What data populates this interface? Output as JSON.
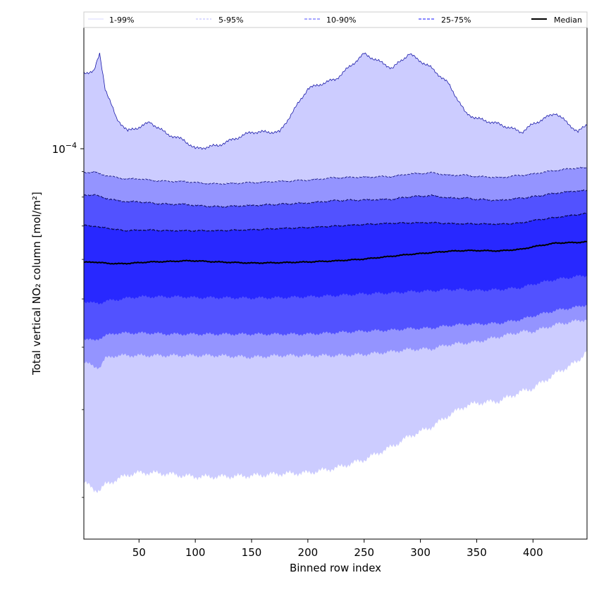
{
  "chart_data": {
    "type": "area",
    "title": "",
    "xlabel": "Binned row index",
    "ylabel": "Total vertical NO₂ column [mol/m²]",
    "xlim": [
      1,
      448
    ],
    "ylim": [
      1.65e-05,
      0.000175
    ],
    "yscale": "log",
    "x_ticks": [
      50,
      100,
      150,
      200,
      250,
      300,
      350,
      400
    ],
    "y_tick_labels": [
      {
        "value": 0.0001,
        "base": "10",
        "exponent": "−4"
      }
    ],
    "legend": {
      "placement": "top",
      "entries": [
        {
          "label": "1-99%",
          "color": "#ccccff",
          "style": "solid-thin"
        },
        {
          "label": "5-95%",
          "color": "#a0a0ff",
          "style": "dashed-thin"
        },
        {
          "label": "10-90%",
          "color": "#7070ff",
          "style": "dashed"
        },
        {
          "label": "25-75%",
          "color": "#4040ff",
          "style": "dashed"
        },
        {
          "label": "Median",
          "color": "#000000",
          "style": "solid-thick"
        }
      ]
    },
    "x": [
      1,
      10,
      15,
      20,
      30,
      40,
      50,
      60,
      75,
      90,
      100,
      120,
      150,
      175,
      200,
      225,
      250,
      275,
      290,
      310,
      325,
      340,
      350,
      370,
      390,
      400,
      420,
      440,
      448
    ],
    "series": [
      {
        "name": "1-99%",
        "color": "#ccccff",
        "lower": [
          2.15e-05,
          2.07e-05,
          2.07e-05,
          2.12e-05,
          2.17e-05,
          2.22e-05,
          2.24e-05,
          2.24e-05,
          2.23e-05,
          2.21e-05,
          2.2e-05,
          2.2e-05,
          2.21e-05,
          2.23e-05,
          2.24e-05,
          2.29e-05,
          2.38e-05,
          2.53e-05,
          2.65e-05,
          2.77e-05,
          2.92e-05,
          3.05e-05,
          3.09e-05,
          3.12e-05,
          3.26e-05,
          3.31e-05,
          3.54e-05,
          3.75e-05,
          3.95e-05
        ],
        "upper": [
          0.000142,
          0.000143,
          0.000155,
          0.000132,
          0.000115,
          0.0001085,
          0.0001105,
          0.000113,
          0.000107,
          0.000104,
          0.0001,
          0.0001015,
          0.000108,
          0.000108,
          0.000132,
          0.000138,
          0.000155,
          0.000145,
          0.000155,
          0.000145,
          0.000135,
          0.000118,
          0.000115,
          0.000112,
          0.000108,
          0.000112,
          0.000118,
          0.000108,
          0.000112
        ]
      },
      {
        "name": "5-95%",
        "color": "#9494ff",
        "lower": [
          3.75e-05,
          3.65e-05,
          3.65e-05,
          3.8e-05,
          3.85e-05,
          3.85e-05,
          3.85e-05,
          3.85e-05,
          3.85e-05,
          3.85e-05,
          3.85e-05,
          3.85e-05,
          3.82e-05,
          3.85e-05,
          3.85e-05,
          3.85e-05,
          3.87e-05,
          3.92e-05,
          3.96e-05,
          3.97e-05,
          4.05e-05,
          4.08e-05,
          4.1e-05,
          4.2e-05,
          4.3e-05,
          4.3e-05,
          4.44e-05,
          4.52e-05,
          4.55e-05
        ],
        "upper": [
          8.95e-05,
          9e-05,
          8.9e-05,
          8.85e-05,
          8.75e-05,
          8.7e-05,
          8.7e-05,
          8.65e-05,
          8.6e-05,
          8.6e-05,
          8.55e-05,
          8.5e-05,
          8.55e-05,
          8.6e-05,
          8.65e-05,
          8.75e-05,
          8.77e-05,
          8.8e-05,
          8.9e-05,
          8.95e-05,
          8.85e-05,
          8.85e-05,
          8.8e-05,
          8.75e-05,
          8.85e-05,
          8.9e-05,
          9.05e-05,
          9.15e-05,
          9.15e-05
        ]
      },
      {
        "name": "10-90%",
        "color": "#5252ff",
        "lower": [
          4.17e-05,
          4.12e-05,
          4.17e-05,
          4.22e-05,
          4.27e-05,
          4.27e-05,
          4.27e-05,
          4.27e-05,
          4.25e-05,
          4.25e-05,
          4.25e-05,
          4.25e-05,
          4.25e-05,
          4.25e-05,
          4.25e-05,
          4.28e-05,
          4.31e-05,
          4.33e-05,
          4.36e-05,
          4.37e-05,
          4.42e-05,
          4.45e-05,
          4.45e-05,
          4.47e-05,
          4.55e-05,
          4.62e-05,
          4.74e-05,
          4.82e-05,
          4.87e-05
        ]
      },
      {
        "name": "25-75%",
        "color": "#2828ff",
        "lower": [
          4.95e-05,
          4.9e-05,
          4.9e-05,
          4.95e-05,
          4.98e-05,
          5.02e-05,
          5.05e-05,
          5.05e-05,
          5.05e-05,
          5.05e-05,
          5.03e-05,
          5.03e-05,
          5.02e-05,
          5.03e-05,
          5.05e-05,
          5.08e-05,
          5.12e-05,
          5.14e-05,
          5.17e-05,
          5.19e-05,
          5.22e-05,
          5.22e-05,
          5.2e-05,
          5.22e-05,
          5.27e-05,
          5.35e-05,
          5.47e-05,
          5.55e-05,
          5.57e-05
        ],
        "upper": [
          7.02e-05,
          7e-05,
          6.95e-05,
          6.95e-05,
          6.88e-05,
          6.85e-05,
          6.87e-05,
          6.87e-05,
          6.85e-05,
          6.85e-05,
          6.85e-05,
          6.85e-05,
          6.88e-05,
          6.92e-05,
          6.95e-05,
          7e-05,
          7.05e-05,
          7.09e-05,
          7.1e-05,
          7.11e-05,
          7.08e-05,
          7.07e-05,
          7.07e-05,
          7.06e-05,
          7.1e-05,
          7.18e-05,
          7.28e-05,
          7.38e-05,
          7.42e-05
        ]
      },
      {
        "name": "Median",
        "color": "#000000",
        "values": [
          5.92e-05,
          5.93e-05,
          5.91e-05,
          5.9e-05,
          5.88e-05,
          5.89e-05,
          5.91e-05,
          5.93e-05,
          5.94e-05,
          5.96e-05,
          5.96e-05,
          5.93e-05,
          5.9e-05,
          5.91e-05,
          5.93e-05,
          5.96e-05,
          6.01e-05,
          6.09e-05,
          6.14e-05,
          6.19e-05,
          6.23e-05,
          6.25e-05,
          6.25e-05,
          6.24e-05,
          6.29e-05,
          6.36e-05,
          6.47e-05,
          6.49e-05,
          6.51e-05
        ]
      }
    ]
  }
}
